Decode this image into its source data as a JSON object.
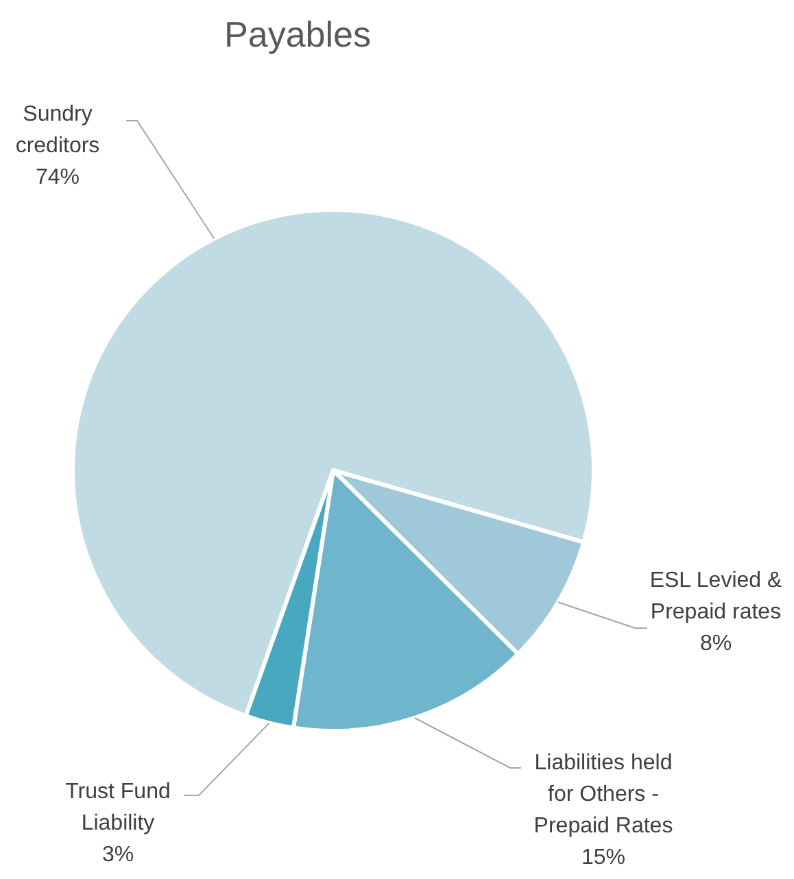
{
  "chart_data": {
    "type": "pie",
    "title": "Payables",
    "categories": [
      "Sundry creditors",
      "ESL Levied & Prepaid rates",
      "Liabilities held for Others - Prepaid Rates",
      "Trust Fund Liability"
    ],
    "values": [
      74,
      8,
      15,
      3
    ],
    "colors": [
      "#c0dbe4",
      "#9fc8d8",
      "#6fb6cd",
      "#48a8c0"
    ],
    "value_labels": [
      "74%",
      "8%",
      "15%",
      "3%"
    ]
  }
}
